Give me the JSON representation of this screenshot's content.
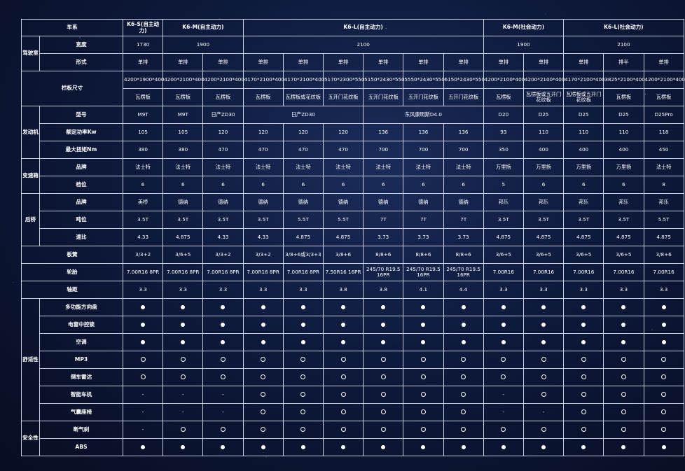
{
  "header": {
    "series_label": "车系",
    "models": [
      {
        "name": "K6-S(自主动力)",
        "span": 1
      },
      {
        "name": "K6-M(自主动力)",
        "span": 2
      },
      {
        "name": "K6-L(自主动力)",
        "span": 6
      },
      {
        "name": "K6-M(社会动力)",
        "span": 2
      },
      {
        "name": "K6-L(社会动力)",
        "span": 3
      }
    ]
  },
  "groups": {
    "cab": "驾驶室",
    "cargo": "栏板尺寸",
    "engine": "发动机",
    "gearbox": "变速箱",
    "rear_axle": "后桥",
    "leaf_spring": "板簧",
    "tire": "轮胎",
    "wheelbase": "轴距",
    "comfort": "舒适性",
    "safety": "安全性"
  },
  "cab": {
    "width_label": "宽度",
    "widths": [
      {
        "value": "1730",
        "span": 1
      },
      {
        "value": "1900",
        "span": 2
      },
      {
        "value": "2100",
        "span": 6
      },
      {
        "value": "1900",
        "span": 2
      },
      {
        "value": "2100",
        "span": 3
      }
    ],
    "form_label": "形式",
    "forms": [
      "单排",
      "单排",
      "单排",
      "单排",
      "单排",
      "单排",
      "单排",
      "单排",
      "单排",
      "单排",
      "单排",
      "单排",
      "排半",
      "单排"
    ]
  },
  "cargo": {
    "sizes": [
      "4200*1900*400",
      "4200*2100*400",
      "4200*2100*400",
      "4170*2100*400",
      "4170*2100*400",
      "5170*2300*550",
      "5150*2430*550",
      "5550*2430*550",
      "6150*2430*550",
      "4200*2100*400",
      "4200*2100*400",
      "4170*2100*400",
      "3825*2100*400",
      "4200*2100*400"
    ],
    "types": [
      "瓦楞板",
      "瓦楞板",
      "瓦楞板",
      "瓦楞板",
      "瓦楞板或花纹板",
      "五开门花纹板",
      "五开门花纹板",
      "五开门花纹板",
      "五开门花纹板",
      "瓦楞板",
      "瓦楞板或五开门花纹板",
      "瓦楞板或五开门花纹板",
      "瓦楞板",
      "瓦楞板"
    ]
  },
  "engine": {
    "model_label": "型号",
    "models": [
      {
        "value": "M9T",
        "span": 1
      },
      {
        "value": "M9T",
        "span": 1
      },
      {
        "value": "日产ZD30",
        "span": 1
      },
      {
        "value": "日产ZD30",
        "span": 3
      },
      {
        "value": "东风康明斯D4.0",
        "span": 3
      },
      {
        "value": "D20",
        "span": 1
      },
      {
        "value": "D25",
        "span": 1
      },
      {
        "value": "D25",
        "span": 1
      },
      {
        "value": "D25",
        "span": 1
      },
      {
        "value": "D25Pro",
        "span": 1
      }
    ],
    "power_label": "额定功率Kw",
    "power": [
      "105",
      "105",
      "120",
      "120",
      "120",
      "120",
      "136",
      "136",
      "136",
      "93",
      "110",
      "110",
      "110",
      "118"
    ],
    "torque_label": "最大扭矩Nm",
    "torque": [
      "380",
      "380",
      "470",
      "470",
      "470",
      "470",
      "700",
      "700",
      "700",
      "350",
      "400",
      "400",
      "400",
      "450"
    ]
  },
  "gearbox": {
    "brand_label": "品牌",
    "brands": [
      "法士特",
      "法士特",
      "法士特",
      "法士特",
      "法士特",
      "法士特",
      "法士特",
      "法士特",
      "法士特",
      "万里扬",
      "万里扬",
      "万里扬",
      "万里扬",
      "法士特"
    ],
    "gears_label": "档位",
    "gears": [
      "6",
      "6",
      "6",
      "6",
      "6",
      "6",
      "6",
      "6",
      "6",
      "5",
      "6",
      "6",
      "6",
      "8"
    ]
  },
  "rear_axle": {
    "brand_label": "品牌",
    "brands": [
      "美桥",
      "德纳",
      "德纳",
      "德纳",
      "德纳",
      "德纳",
      "德纳",
      "德纳",
      "德纳",
      "邦乐",
      "邦乐",
      "邦乐",
      "邦乐",
      "邦乐"
    ],
    "tonnage_label": "吨位",
    "tonnage": [
      "3.5T",
      "3.5T",
      "3.5T",
      "3.5T",
      "5.5T",
      "5.5T",
      "7T",
      "7T",
      "7T",
      "3.5T",
      "3.5T",
      "3.5T",
      "3.5T",
      "5.5T"
    ],
    "ratio_label": "速比",
    "ratio": [
      "4.33",
      "4.875",
      "4.33",
      "4.33",
      "4.875",
      "4.875",
      "3.73",
      "3.73",
      "3.73",
      "4.875",
      "4.875",
      "4.875",
      "4.875",
      "4.875"
    ]
  },
  "leaf_spring": [
    "3/3+2",
    "3/6+5",
    "3/3+2",
    "3/3+2",
    "3/8+6或3/3+3",
    "3/8+6",
    "8/8+6",
    "8/8+6",
    "8/8+6",
    "3/6+5",
    "3/6+5",
    "3/6+5",
    "3/6+5",
    "3/8+6"
  ],
  "tire": [
    "7.00R16 8PR",
    "7.00R16 8PR",
    "7.00R16 8PR",
    "7.00R16 8PR",
    "7.00R16 8PR",
    "7.50R16 16PR",
    "245/70 R19.5 16PR",
    "245/70 R19.5 16PR",
    "245/70 R19.5 16PR",
    "7.00R16",
    "7.00R16",
    "7.00R16",
    "7.00R16",
    "7.00R16"
  ],
  "wheelbase": [
    "3.3",
    "3.3",
    "3.3",
    "3.3",
    "3.3",
    "3.8",
    "3.8",
    "4.1",
    "4.4",
    "3.3",
    "3.3",
    "3.3",
    "3.3",
    "3.3"
  ],
  "features": {
    "legend": {
      "standard": "●",
      "optional": "○",
      "none": "-"
    },
    "comfort": [
      {
        "label": "多功能方向盘",
        "values": [
          "std",
          "std",
          "std",
          "std",
          "std",
          "std",
          "std",
          "std",
          "std",
          "std",
          "std",
          "std",
          "std",
          "std"
        ]
      },
      {
        "label": "电窗中控锁",
        "values": [
          "std",
          "std",
          "std",
          "std",
          "std",
          "std",
          "std",
          "std",
          "std",
          "std",
          "std",
          "std",
          "std",
          "std"
        ]
      },
      {
        "label": "空调",
        "values": [
          "std",
          "std",
          "std",
          "std",
          "std",
          "std",
          "std",
          "std",
          "std",
          "std",
          "std",
          "std",
          "std",
          "std"
        ]
      },
      {
        "label": "MP3",
        "values": [
          "opt",
          "opt",
          "opt",
          "opt",
          "opt",
          "opt",
          "opt",
          "opt",
          "opt",
          "opt",
          "opt",
          "opt",
          "opt",
          "opt"
        ]
      },
      {
        "label": "倒车雷达",
        "values": [
          "opt",
          "opt",
          "opt",
          "opt",
          "opt",
          "opt",
          "opt",
          "opt",
          "opt",
          "opt",
          "opt",
          "opt",
          "opt",
          "opt"
        ]
      },
      {
        "label": "智能车机",
        "values": [
          "none",
          "none",
          "none",
          "opt",
          "opt",
          "opt",
          "opt",
          "opt",
          "opt",
          "none",
          "opt",
          "opt",
          "opt",
          "opt"
        ]
      },
      {
        "label": "气囊座椅",
        "values": [
          "none",
          "none",
          "none",
          "opt",
          "opt",
          "opt",
          "opt",
          "opt",
          "opt",
          "none",
          "none",
          "opt",
          "opt",
          "opt"
        ]
      }
    ],
    "safety": [
      {
        "label": "断气刹",
        "values": [
          "none",
          "opt",
          "opt",
          "opt",
          "opt",
          "opt",
          "opt",
          "opt",
          "opt",
          "opt",
          "opt",
          "opt",
          "opt",
          "opt"
        ]
      },
      {
        "label": "ABS",
        "values": [
          "std",
          "std",
          "std",
          "std",
          "std",
          "std",
          "std",
          "std",
          "std",
          "std",
          "std",
          "std",
          "std",
          "std"
        ]
      }
    ]
  }
}
